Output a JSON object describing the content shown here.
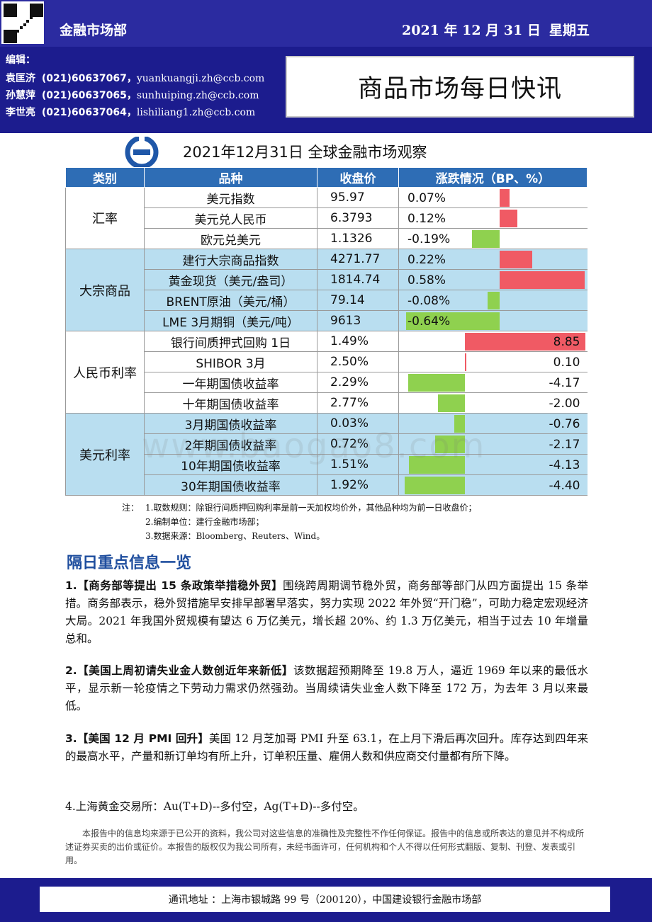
{
  "header": {
    "department": "金融市场部",
    "date": "2021 年 12 月 31 日",
    "weekday": "星期五",
    "title": "商品市场每日快讯"
  },
  "editors": {
    "label": "编辑：",
    "people": [
      {
        "name": "袁匡济",
        "phone": "(021)60637067，",
        "email": "yuankuangji.zh@ccb.com"
      },
      {
        "name": "孙慧萍",
        "phone": "(021)60637065，",
        "email": "sunhuiping.zh@ccb.com"
      },
      {
        "name": "李世亮",
        "phone": "(021)60637064，",
        "email": "lishiliang1.zh@ccb.com"
      }
    ]
  },
  "market": {
    "title": "2021年12月31日 全球金融市场观察",
    "headers": [
      "类别",
      "品种",
      "收盘价",
      "涨跌情况（BP、%）"
    ],
    "colors": {
      "up": "#f05a64",
      "down": "#8fd14f",
      "header": "#2e6db5",
      "band": "#b9def0"
    },
    "groups": [
      {
        "category": "汇率",
        "rows": [
          {
            "item": "美元指数",
            "close": "95.97",
            "change": "0.07%",
            "value": 0.07
          },
          {
            "item": "美元兑人民币",
            "close": "6.3793",
            "change": "0.12%",
            "value": 0.12
          },
          {
            "item": "欧元兑美元",
            "close": "1.1326",
            "change": "-0.19%",
            "value": -0.19
          }
        ]
      },
      {
        "category": "大宗商品",
        "rows": [
          {
            "item": "建行大宗商品指数",
            "close": "4271.77",
            "change": "0.22%",
            "value": 0.22
          },
          {
            "item": "黄金现货（美元/盎司）",
            "close": "1814.74",
            "change": "0.58%",
            "value": 0.58
          },
          {
            "item": "BRENT原油（美元/桶）",
            "close": "79.14",
            "change": "-0.08%",
            "value": -0.08
          },
          {
            "item": "LME 3月期铜（美元/吨）",
            "close": "9613",
            "change": "-0.64%",
            "value": -0.64
          }
        ]
      },
      {
        "category": "人民币利率",
        "rows": [
          {
            "item": "银行间质押式回购 1日",
            "close": "1.49%",
            "change": "8.85",
            "value": 8.85
          },
          {
            "item": "SHIBOR 3月",
            "close": "2.50%",
            "change": "0.10",
            "value": 0.1
          },
          {
            "item": "一年期国债收益率",
            "close": "2.29%",
            "change": "-4.17",
            "value": -4.17
          },
          {
            "item": "十年期国债收益率",
            "close": "2.77%",
            "change": "-2.00",
            "value": -2.0
          }
        ]
      },
      {
        "category": "美元利率",
        "rows": [
          {
            "item": "3月期国债收益率",
            "close": "0.03%",
            "change": "-0.76",
            "value": -0.76
          },
          {
            "item": "2年期国债收益率",
            "close": "0.72%",
            "change": "-2.17",
            "value": -2.17
          },
          {
            "item": "10年期国债收益率",
            "close": "1.51%",
            "change": "-4.13",
            "value": -4.13
          },
          {
            "item": "30年期国债收益率",
            "close": "1.92%",
            "change": "-4.40",
            "value": -4.4
          }
        ]
      }
    ],
    "watermark": "www.baogao8.com"
  },
  "notes": {
    "prefix": "注：",
    "items": [
      "1.取数规则：除银行间质押回购利率是前一天加权均价外，其他品种均为前一日收盘价；",
      "2.编制单位：建行金融市场部；",
      "3.数据来源：Bloomberg、Reuters、Wind。"
    ]
  },
  "news": {
    "section_title": "隔日重点信息一览",
    "items": [
      {
        "head": "1.【商务部等提出 15 条政策举措稳外贸】",
        "body": "围绕跨周期调节稳外贸，商务部等部门从四方面提出 15 条举措。商务部表示，稳外贸措施早安排早部署早落实，努力实现 2022 年外贸“开门稳”，可助力稳定宏观经济大局。2021 年我国外贸规模有望达 6 万亿美元，增长超 20%、约 1.3 万亿美元，相当于过去 10 年增量总和。"
      },
      {
        "head": "2.【美国上周初请失业金人数创近年来新低】",
        "body": "该数据超预期降至 19.8 万人，逼近 1969 年以来的最低水平，显示新一轮疫情之下劳动力需求仍然强劲。当周续请失业金人数下降至 172 万，为去年 3 月以来最低。"
      },
      {
        "head": "3.【美国 12 月 PMI 回升】",
        "body": "美国 12 月芝加哥 PMI 升至 63.1，在上月下滑后再次回升。库存达到四年来的最高水平，产量和新订单均有所上升，订单积压量、雇佣人数和供应商交付量都有所下降。"
      },
      {
        "head": "",
        "body": "4.上海黄金交易所：Au(T+D)--多付空，Ag(T+D)--多付空。"
      }
    ]
  },
  "disclaimer": "本报告中的信息均来源于已公开的资料，我公司对这些信息的准确性及完整性不作任何保证。报告中的信息或所表达的意见并不构成所述证券买卖的出价或征价。本报告的版权仅为我公司所有，未经书面许可，任何机构和个人不得以任何形式翻版、复制、刊登、发表或引用。",
  "footer": {
    "address": "通讯地址 ：上海市银城路 99 号（200120），中国建设银行金融市场部"
  }
}
